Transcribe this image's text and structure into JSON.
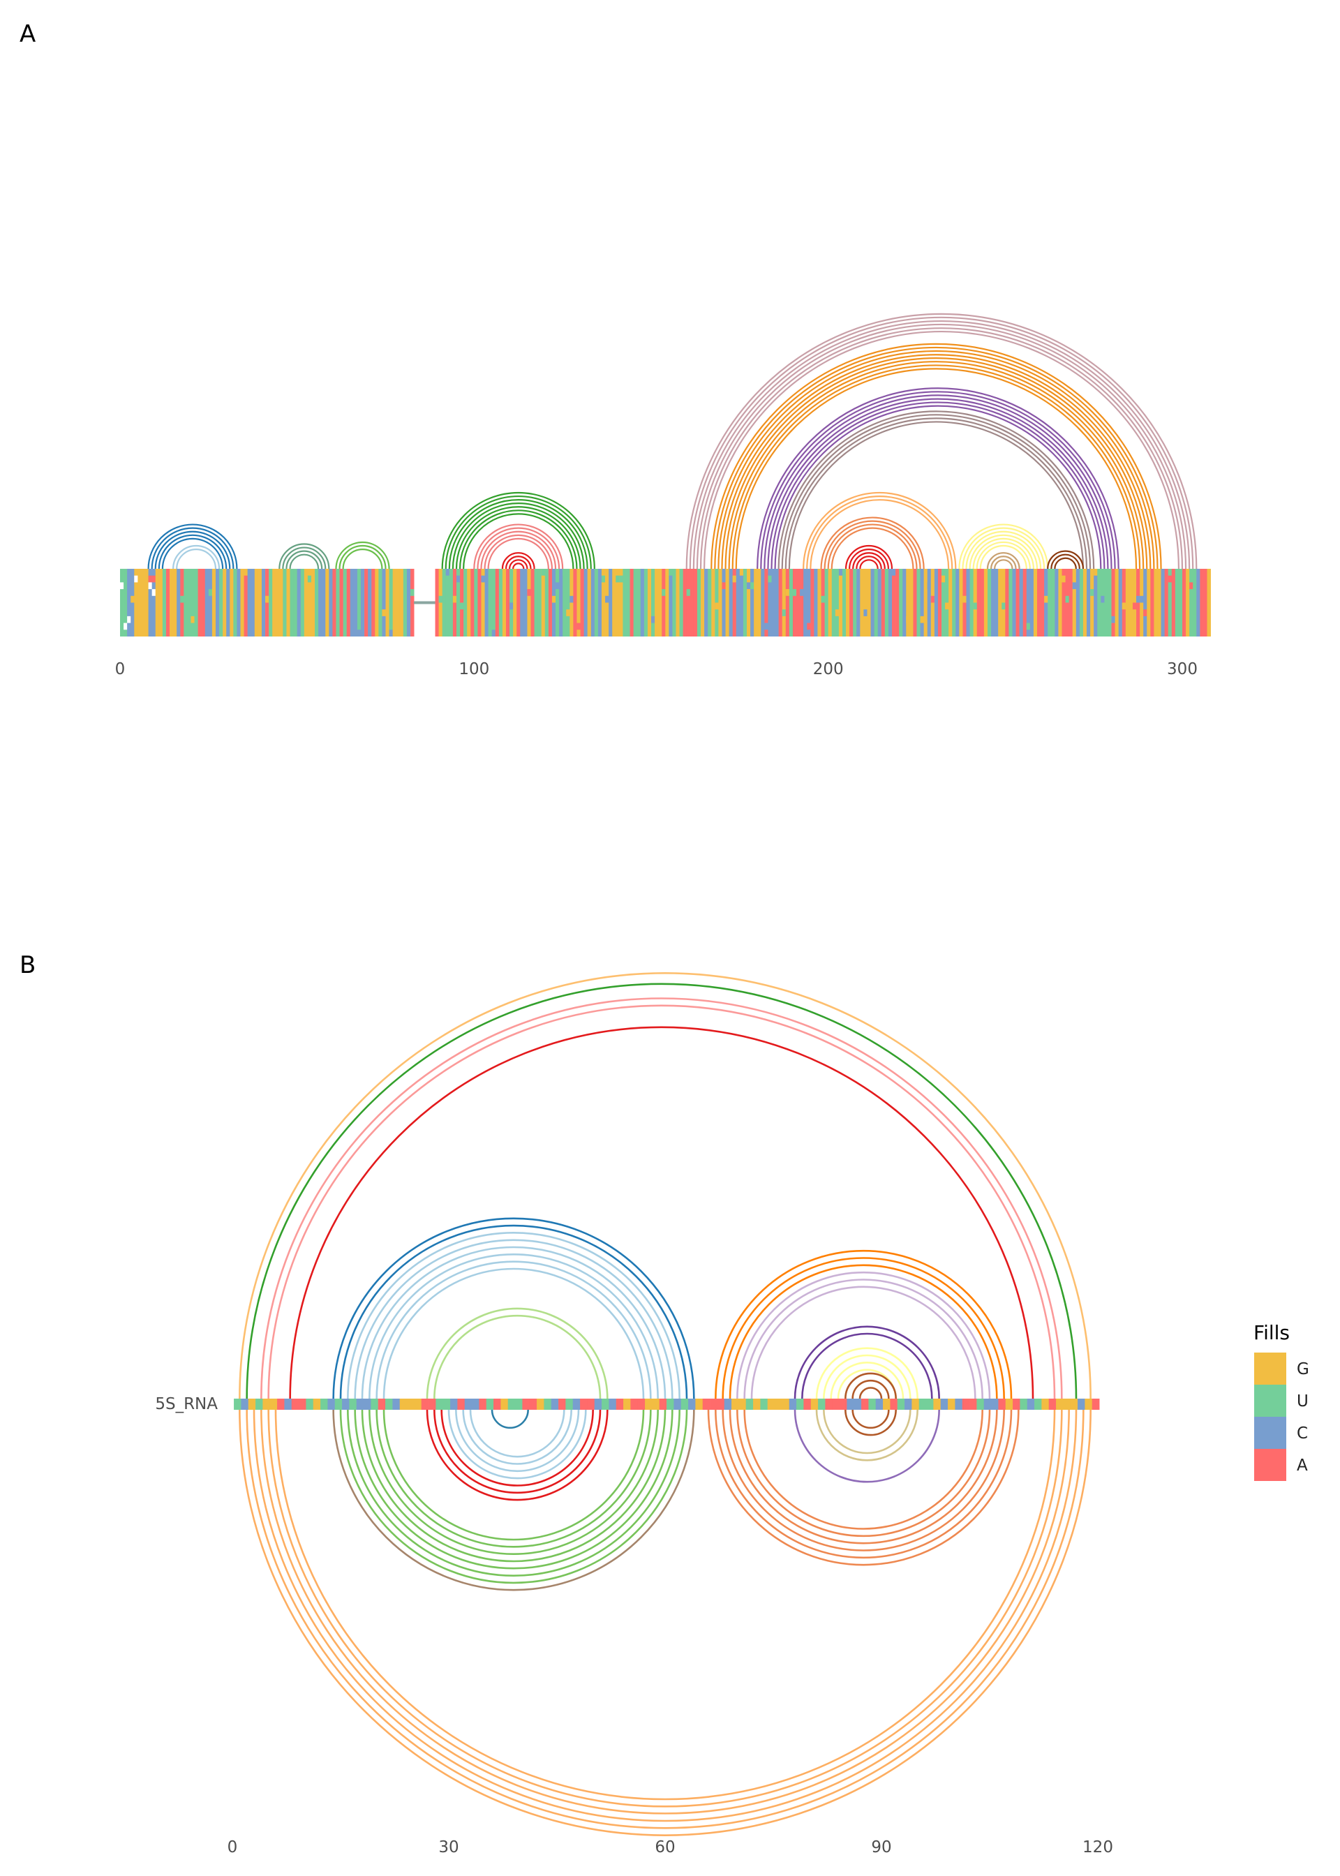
{
  "panels": {
    "a": {
      "letter": "A"
    },
    "b": {
      "letter": "B"
    }
  },
  "chart_data": [
    {
      "panel": "A",
      "type": "arc-diagram",
      "x_ticks": [
        "0",
        "100",
        "200",
        "300"
      ],
      "tick_values": [
        0,
        100,
        200,
        300
      ],
      "xlim": [
        0,
        308
      ],
      "helices": [
        {
          "i": 8,
          "j": 33,
          "n": 5,
          "color": "#1f78b4"
        },
        {
          "i": 15,
          "j": 28,
          "n": 2,
          "color": "#a6cee3"
        },
        {
          "i": 45,
          "j": 59,
          "n": 4,
          "color": "#66a182"
        },
        {
          "i": 61,
          "j": 76,
          "n": 3,
          "color": "#6abf4b"
        },
        {
          "i": 91,
          "j": 134,
          "n": 7,
          "color": "#33a02c"
        },
        {
          "i": 100,
          "j": 125,
          "n": 5,
          "color": "#f08080"
        },
        {
          "i": 108,
          "j": 117,
          "n": 4,
          "color": "#e31a1c"
        },
        {
          "i": 160,
          "j": 304,
          "n": 6,
          "color": "#c9a0a8"
        },
        {
          "i": 167,
          "j": 294,
          "n": 8,
          "color": "#f0901c"
        },
        {
          "i": 180,
          "j": 282,
          "n": 6,
          "color": "#8856a7"
        },
        {
          "i": 186,
          "j": 275,
          "n": 4,
          "color": "#a08888"
        },
        {
          "i": 193,
          "j": 236,
          "n": 3,
          "color": "#fdae61"
        },
        {
          "i": 198,
          "j": 227,
          "n": 4,
          "color": "#ee8850"
        },
        {
          "i": 205,
          "j": 218,
          "n": 5,
          "color": "#e31a1c"
        },
        {
          "i": 237,
          "j": 262,
          "n": 7,
          "color": "#fff58a"
        },
        {
          "i": 245,
          "j": 254,
          "n": 3,
          "color": "#c8a070"
        },
        {
          "i": 262,
          "j": 272,
          "n": 3,
          "color": "#8b3a0f"
        }
      ]
    },
    {
      "panel": "B",
      "type": "arc-diagram",
      "sequence_label": "5S_RNA",
      "x_ticks": [
        "0",
        "30",
        "60",
        "90",
        "120"
      ],
      "tick_values": [
        0,
        30,
        60,
        90,
        120
      ],
      "xlim": [
        0,
        120
      ],
      "arcs_top": [
        {
          "i": 1,
          "j": 119,
          "n": 1,
          "color": "#fdbf6f"
        },
        {
          "i": 2,
          "j": 117,
          "n": 1,
          "color": "#33a02c"
        },
        {
          "i": 4,
          "j": 115,
          "n": 1,
          "color": "#fb9a99"
        },
        {
          "i": 5,
          "j": 114,
          "n": 1,
          "color": "#fb9a99"
        },
        {
          "i": 8,
          "j": 111,
          "n": 1,
          "color": "#e31a1c"
        },
        {
          "i": 14,
          "j": 64,
          "n": 2,
          "color": "#1f78b4"
        },
        {
          "i": 16,
          "j": 62,
          "n": 6,
          "color": "#a6cee3"
        },
        {
          "i": 27,
          "j": 52,
          "n": 2,
          "color": "#b2df8a"
        },
        {
          "i": 67,
          "j": 108,
          "n": 3,
          "color": "#ff7f00"
        },
        {
          "i": 70,
          "j": 105,
          "n": 3,
          "color": "#cab2d6"
        },
        {
          "i": 78,
          "j": 98,
          "n": 2,
          "color": "#6a3d9a"
        },
        {
          "i": 81,
          "j": 95,
          "n": 4,
          "color": "#ffff99"
        },
        {
          "i": 85,
          "j": 92,
          "n": 3,
          "color": "#b15928"
        }
      ],
      "arcs_bottom": [
        {
          "i": 1,
          "j": 119,
          "n": 6,
          "color": "#fdae61"
        },
        {
          "i": 14,
          "j": 64,
          "n": 1,
          "color": "#a6856b"
        },
        {
          "i": 15,
          "j": 63,
          "n": 7,
          "color": "#78c35a"
        },
        {
          "i": 27,
          "j": 52,
          "n": 3,
          "color": "#e31a1c"
        },
        {
          "i": 30,
          "j": 49,
          "n": 4,
          "color": "#a6cee3"
        },
        {
          "i": 36,
          "j": 41,
          "n": 1,
          "color": "#2b7fa8"
        },
        {
          "i": 66,
          "j": 109,
          "n": 6,
          "color": "#ee8850"
        },
        {
          "i": 78,
          "j": 98,
          "n": 1,
          "color": "#8e6bb8"
        },
        {
          "i": 81,
          "j": 95,
          "n": 2,
          "color": "#d4c48a"
        },
        {
          "i": 85,
          "j": 92,
          "n": 2,
          "color": "#b15928"
        }
      ]
    }
  ],
  "legend": {
    "title": "Fills",
    "items": [
      {
        "label": "G",
        "color": "#f2bd42"
      },
      {
        "label": "U",
        "color": "#74cf9a"
      },
      {
        "label": "C",
        "color": "#789ecf"
      },
      {
        "label": "A",
        "color": "#ff6b6b"
      }
    ]
  }
}
